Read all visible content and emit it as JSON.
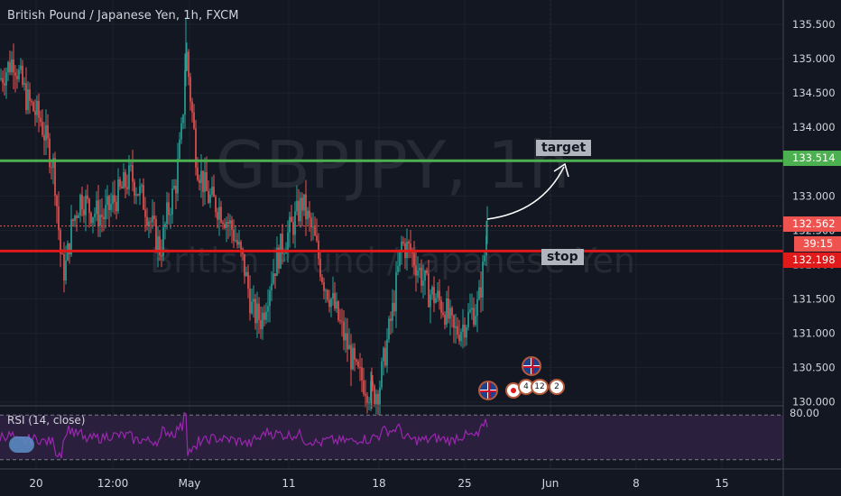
{
  "title": "British Pound / Japanese Yen, 1h, FXCM",
  "watermark": {
    "symbol": "GBPJPY, 1h",
    "name": "British Pound / Japanese Yen"
  },
  "colors": {
    "background": "#131722",
    "up": "#26a69a",
    "down": "#ef5350",
    "target_line": "#4caf50",
    "stop_line": "#e0191b",
    "rsi": "#9c27b0",
    "rsi_band": "#2a1f3d",
    "axis_text": "#d1d4dc",
    "current_price": "#ef5350"
  },
  "annotations": {
    "target": "target",
    "stop": "stop"
  },
  "price_tags": {
    "target": "133.514",
    "current": "132.562",
    "countdown": "39:15",
    "stop": "132.198"
  },
  "events": {
    "markers": [
      "4",
      "12",
      "2"
    ],
    "flags": [
      "uk-flag-icon",
      "uk-flag-icon"
    ]
  },
  "rsi": {
    "label": "RSI (14, close)",
    "level_label": "80.00"
  },
  "chart_data": {
    "type": "candlestick",
    "title": "British Pound / Japanese Yen, 1h, FXCM",
    "ylim": [
      129.97,
      135.75
    ],
    "y_ticks": [
      130.0,
      130.5,
      131.0,
      131.5,
      132.0,
      132.5,
      133.0,
      133.5,
      134.0,
      134.5,
      135.0,
      135.5
    ],
    "x_ticks": [
      "20",
      "12:00",
      "May",
      "11",
      "18",
      "25",
      "Jun",
      "8",
      "15"
    ],
    "horizontal_lines": [
      {
        "name": "target",
        "value": 133.514
      },
      {
        "name": "stop",
        "value": 132.198
      },
      {
        "name": "current",
        "value": 132.562
      }
    ],
    "price_path": [
      [
        0,
        134.7
      ],
      [
        15,
        135.0
      ],
      [
        30,
        134.4
      ],
      [
        45,
        134.1
      ],
      [
        60,
        133.4
      ],
      [
        68,
        132.0
      ],
      [
        72,
        131.9
      ],
      [
        80,
        132.6
      ],
      [
        90,
        133.0
      ],
      [
        100,
        132.8
      ],
      [
        115,
        132.7
      ],
      [
        130,
        133.0
      ],
      [
        145,
        133.3
      ],
      [
        160,
        132.9
      ],
      [
        170,
        132.5
      ],
      [
        178,
        132.2
      ],
      [
        185,
        132.7
      ],
      [
        195,
        133.2
      ],
      [
        202,
        134.0
      ],
      [
        206,
        135.2
      ],
      [
        210,
        134.6
      ],
      [
        218,
        133.5
      ],
      [
        230,
        133.0
      ],
      [
        245,
        132.8
      ],
      [
        258,
        132.5
      ],
      [
        270,
        132.0
      ],
      [
        280,
        131.3
      ],
      [
        290,
        131.2
      ],
      [
        300,
        131.8
      ],
      [
        310,
        132.2
      ],
      [
        325,
        132.6
      ],
      [
        335,
        132.9
      ],
      [
        348,
        132.4
      ],
      [
        358,
        131.8
      ],
      [
        370,
        131.4
      ],
      [
        380,
        131.0
      ],
      [
        388,
        130.7
      ],
      [
        395,
        130.4
      ],
      [
        403,
        130.3
      ],
      [
        412,
        130.1
      ],
      [
        420,
        130.2
      ],
      [
        428,
        130.8
      ],
      [
        436,
        131.4
      ],
      [
        445,
        132.3
      ],
      [
        455,
        132.2
      ],
      [
        465,
        131.9
      ],
      [
        475,
        131.6
      ],
      [
        485,
        131.5
      ],
      [
        495,
        131.3
      ],
      [
        503,
        131.0
      ],
      [
        512,
        131.1
      ],
      [
        522,
        131.3
      ],
      [
        530,
        131.4
      ],
      [
        536,
        132.0
      ],
      [
        540,
        132.6
      ]
    ],
    "rsi": {
      "label": "RSI (14, close)",
      "levels": [
        80,
        20
      ]
    }
  }
}
